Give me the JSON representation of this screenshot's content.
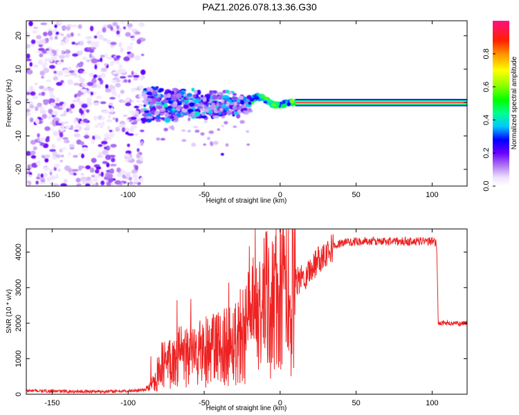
{
  "title": "PAZ1.2026.078.13.36.G30",
  "chart_data": [
    {
      "type": "heatmap",
      "name": "spectrogram",
      "xlabel": "Height of straight line (km)",
      "ylabel": "Frequency (Hz)",
      "xlim": [
        -167,
        123
      ],
      "ylim": [
        -25,
        24.5
      ],
      "x_ticks": [
        -150,
        -100,
        -50,
        0,
        50,
        100
      ],
      "y_ticks": [
        -20,
        -10,
        0,
        10,
        20
      ],
      "colorbar": {
        "label": "Normalized spectral amplitude",
        "range": [
          0,
          1
        ],
        "ticks": [
          0.0,
          0.2,
          0.4,
          0.6,
          0.8
        ]
      },
      "features": [
        {
          "region": "noise",
          "x_range": [
            -167,
            -90
          ],
          "y_range": [
            -25,
            24
          ],
          "amplitude": "low (0.05-0.2)"
        },
        {
          "region": "signal-scattered",
          "x_range": [
            -90,
            -20
          ],
          "y_center": 0,
          "y_spread": 6,
          "amplitude": "0.1-0.4"
        },
        {
          "region": "signal-converging",
          "x_range": [
            -20,
            10
          ],
          "y_center": 0,
          "y_spread": 3,
          "amplitude": "0.3-0.6"
        },
        {
          "region": "tone",
          "x_range": [
            10,
            123
          ],
          "y_center": 0,
          "amplitude": "1.0"
        }
      ]
    },
    {
      "type": "line",
      "name": "snr",
      "xlabel": "Height of straight line (km)",
      "ylabel": "SNR (10 * v/v)",
      "xlim": [
        -167,
        123
      ],
      "ylim": [
        0,
        4650
      ],
      "x_ticks": [
        -150,
        -100,
        -50,
        0,
        50,
        100
      ],
      "y_ticks": [
        0,
        1000,
        2000,
        3000,
        4000
      ],
      "color": "#ee2222",
      "series": [
        {
          "name": "SNR",
          "x": [
            -167,
            -140,
            -110,
            -95,
            -87,
            -82,
            -78,
            -70,
            -60,
            -50,
            -40,
            -30,
            -20,
            -15,
            -10,
            -5,
            0,
            5,
            10,
            20,
            25,
            30,
            35,
            40,
            50,
            60,
            70,
            80,
            90,
            100,
            103,
            104,
            110,
            115,
            123
          ],
          "values": [
            100,
            80,
            80,
            100,
            150,
            400,
            800,
            1000,
            1100,
            1200,
            1300,
            1500,
            2000,
            2200,
            2500,
            2600,
            2700,
            2900,
            3100,
            3500,
            3800,
            4000,
            4150,
            4250,
            4300,
            4300,
            4300,
            4300,
            4300,
            4300,
            4250,
            2000,
            2000,
            1980,
            2000
          ]
        }
      ]
    }
  ]
}
